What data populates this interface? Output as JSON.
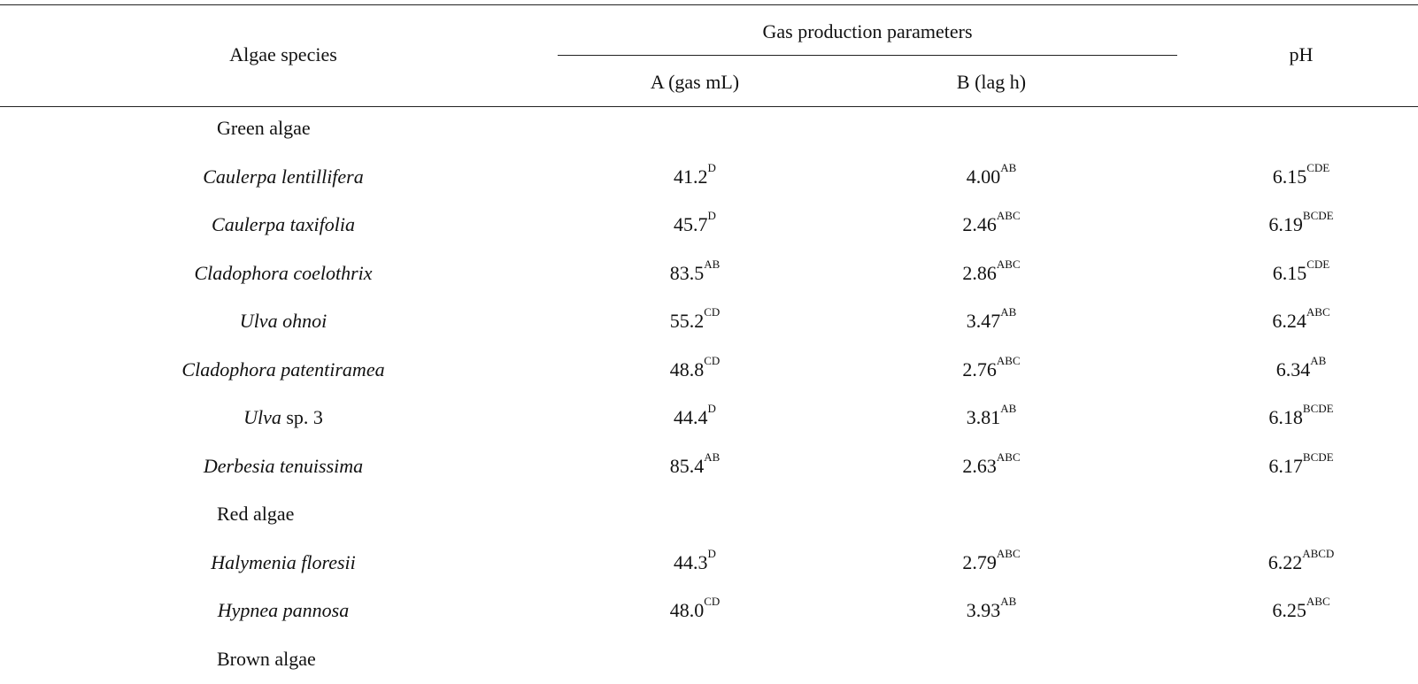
{
  "header": {
    "species": "Algae species",
    "group": "Gas production parameters",
    "col_a": "A (gas mL)",
    "col_b": "B (lag h)",
    "col_ph": "pH"
  },
  "body": [
    {
      "type": "group",
      "label": "Green algae"
    },
    {
      "type": "row",
      "name_italic": "Caulerpa lentillifera",
      "name_rest": "",
      "a": "41.2",
      "a_sup": "D",
      "b": "4.00",
      "b_sup": "AB",
      "ph": "6.15",
      "ph_sup": "CDE"
    },
    {
      "type": "row",
      "name_italic": "Caulerpa taxifolia",
      "name_rest": "",
      "a": "45.7",
      "a_sup": "D",
      "b": "2.46",
      "b_sup": "ABC",
      "ph": "6.19",
      "ph_sup": "BCDE"
    },
    {
      "type": "row",
      "name_italic": "Cladophora coelothrix",
      "name_rest": "",
      "a": "83.5",
      "a_sup": "AB",
      "b": "2.86",
      "b_sup": "ABC",
      "ph": "6.15",
      "ph_sup": "CDE"
    },
    {
      "type": "row",
      "name_italic": "Ulva ohnoi",
      "name_rest": "",
      "a": "55.2",
      "a_sup": "CD",
      "b": "3.47",
      "b_sup": "AB",
      "ph": "6.24",
      "ph_sup": "ABC"
    },
    {
      "type": "row",
      "name_italic": "Cladophora patentiramea",
      "name_rest": "",
      "a": "48.8",
      "a_sup": "CD",
      "b": "2.76",
      "b_sup": "ABC",
      "ph": "6.34",
      "ph_sup": "AB"
    },
    {
      "type": "row",
      "name_italic": "Ulva",
      "name_rest": " sp. 3",
      "a": "44.4",
      "a_sup": "D",
      "b": "3.81",
      "b_sup": "AB",
      "ph": "6.18",
      "ph_sup": "BCDE"
    },
    {
      "type": "row",
      "name_italic": "Derbesia tenuissima",
      "name_rest": "",
      "a": "85.4",
      "a_sup": "AB",
      "b": "2.63",
      "b_sup": "ABC",
      "ph": "6.17",
      "ph_sup": "BCDE"
    },
    {
      "type": "group",
      "label": "Red algae"
    },
    {
      "type": "row",
      "name_italic": "Halymenia floresii",
      "name_rest": "",
      "a": "44.3",
      "a_sup": "D",
      "b": "2.79",
      "b_sup": "ABC",
      "ph": "6.22",
      "ph_sup": "ABCD"
    },
    {
      "type": "row",
      "name_italic": "Hypnea pannosa",
      "name_rest": "",
      "a": "48.0",
      "a_sup": "CD",
      "b": "3.93",
      "b_sup": "AB",
      "ph": "6.25",
      "ph_sup": "ABC"
    },
    {
      "type": "group",
      "label": "Brown algae"
    }
  ]
}
